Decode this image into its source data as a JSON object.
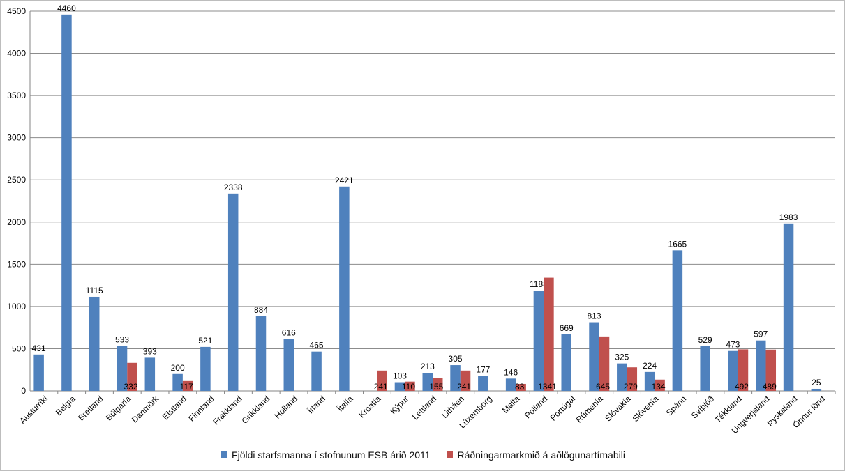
{
  "chart_data": {
    "type": "bar",
    "title": "",
    "xlabel": "",
    "ylabel": "",
    "ylim": [
      0,
      4500
    ],
    "yticks": [
      0,
      500,
      1000,
      1500,
      2000,
      2500,
      3000,
      3500,
      4000,
      4500
    ],
    "grid": true,
    "legend_position": "bottom",
    "categories": [
      "Austurríki",
      "Belgía",
      "Bretland",
      "Búlgaría",
      "Danmörk",
      "Eistland",
      "Finnland",
      "Frakkland",
      "Grikkland",
      "Holland",
      "Írland",
      "Ítalía",
      "Króatía",
      "Kýpur",
      "Lettland",
      "Litháen",
      "Lúxemborg",
      "Malta",
      "Pólland",
      "Portúgal",
      "Rúmenía",
      "Slóvakía",
      "Slóvenía",
      "Spánn",
      "Svíþjóð",
      "Tékkland",
      "Ungverjaland",
      "Þýskaland",
      "Önnur lönd"
    ],
    "series": [
      {
        "name": "Fjöldi starfsmanna í stofnunum ESB árið 2011",
        "color": "#4f81bd",
        "values": [
          431,
          4460,
          1115,
          533,
          393,
          200,
          521,
          2338,
          884,
          616,
          465,
          2421,
          null,
          103,
          213,
          305,
          177,
          146,
          1188,
          669,
          813,
          325,
          224,
          1665,
          529,
          473,
          597,
          1983,
          25
        ]
      },
      {
        "name": "Ráðningarmarkmið á aðlögunartímabili",
        "color": "#c0504d",
        "values": [
          null,
          null,
          null,
          332,
          null,
          117,
          null,
          null,
          null,
          null,
          null,
          null,
          241,
          110,
          155,
          241,
          null,
          83,
          1341,
          null,
          645,
          279,
          134,
          null,
          null,
          492,
          489,
          null,
          null
        ]
      }
    ]
  }
}
